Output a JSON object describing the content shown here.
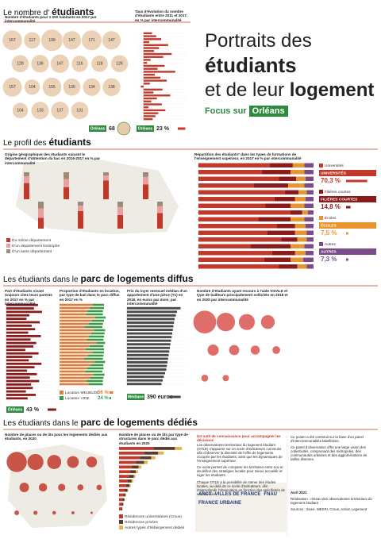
{
  "header": {
    "line1": "Portraits des",
    "line2": "étudiants",
    "line3a": "et de leur",
    "line3b": "logement",
    "focus": "Focus sur",
    "city": "Orléans"
  },
  "sections": [
    {
      "a": "Le nombre d'",
      "b": "étudiants"
    },
    {
      "a": "Le profil des",
      "b": "étudiants"
    },
    {
      "a": "Les étudiants dans le",
      "b": "parc de logements diffus"
    },
    {
      "a": "Les étudiants dans le",
      "b": "parc de logements dédiés"
    }
  ],
  "chart_data": [
    {
      "type": "bubble",
      "title": "Nombre d'étudiants pour 1 000 habitants en 2017 par intercommunalité",
      "color": "#e8c9a8",
      "show_values": true,
      "values": [
        167,
        117,
        199,
        147,
        171,
        147,
        128,
        136,
        147,
        116,
        118,
        126,
        157,
        104,
        155,
        130,
        134,
        138,
        104,
        133,
        137,
        131
      ],
      "summary": {
        "label": "Orléans",
        "value": 68
      }
    },
    {
      "type": "bar",
      "title": "Taux d'évolution du nombre d'étudiants entre 2011 et 2017, en % par intercommunalité",
      "color": "#c0392b",
      "values": [
        12,
        18,
        25,
        8,
        35,
        22,
        15,
        40,
        28,
        10,
        5,
        30,
        20,
        45,
        16,
        24,
        33,
        9,
        -4,
        27,
        14,
        38,
        19,
        11,
        26,
        7,
        31,
        21,
        17,
        13
      ],
      "xlim": [
        -10,
        60
      ],
      "summary": {
        "label": "Orléans",
        "value": 23,
        "value_label": "23 %"
      }
    },
    {
      "type": "column",
      "title": "Origine géographique des étudiants suivant le département d'obtention du bac en 2016-2017 en % par intercommunalité",
      "ylim": [
        0,
        100
      ],
      "series": [
        {
          "name": "Du même département",
          "color": "#c0392b",
          "values": [
            60,
            45,
            70,
            55,
            40,
            65,
            50,
            58
          ]
        },
        {
          "name": "D'un département limitrophe",
          "color": "#e8a0a0",
          "values": [
            25,
            30,
            18,
            28,
            35,
            20,
            30,
            25
          ]
        },
        {
          "name": "D'un autre département",
          "color": "#9a8b7a",
          "values": [
            15,
            25,
            12,
            17,
            25,
            15,
            20,
            17
          ]
        }
      ]
    },
    {
      "type": "bar",
      "stacked": true,
      "title": "Répartition des étudiants* dans les types de formations de l'enseignement supérieur, en 2017 en % par intercommunalité",
      "xlim": [
        0,
        100
      ],
      "series": [
        {
          "name": "Universités",
          "color": "#c0392b",
          "total": 70.3,
          "total_label": "70,3 %",
          "values": [
            62,
            55,
            70,
            48,
            75,
            66,
            58,
            80,
            52,
            68,
            60,
            72,
            45,
            64,
            57,
            70
          ]
        },
        {
          "name": "Filières courtes",
          "color": "#8b1a1a",
          "total": 14.8,
          "total_label": "14,8 %",
          "values": [
            20,
            25,
            15,
            30,
            12,
            18,
            22,
            10,
            28,
            16,
            24,
            14,
            35,
            20,
            23,
            16
          ]
        },
        {
          "name": "Écoles",
          "color": "#e8952f",
          "total": 7.5,
          "total_label": "7,5 %",
          "values": [
            10,
            12,
            8,
            14,
            7,
            9,
            12,
            5,
            12,
            9,
            10,
            8,
            12,
            9,
            11,
            8
          ]
        },
        {
          "name": "Autres",
          "color": "#7a4a8a",
          "total": 7.3,
          "total_label": "7,3 %",
          "values": [
            8,
            8,
            7,
            8,
            6,
            7,
            8,
            5,
            8,
            7,
            6,
            6,
            8,
            7,
            9,
            6
          ]
        }
      ]
    },
    {
      "type": "bar",
      "title": "Part d'étudiants vivant toujours chez leurs parents en 2017 en % par intercommunalité",
      "color": "#8b1a1a",
      "values": [
        55,
        48,
        62,
        40,
        35,
        58,
        44,
        50,
        38,
        60,
        42,
        52,
        47,
        33,
        56,
        45,
        39,
        61,
        49,
        36,
        53,
        41,
        57,
        43,
        46,
        34,
        51,
        37
      ],
      "xlim": [
        0,
        80
      ],
      "summary": {
        "label": "Orléans",
        "value": 43,
        "value_label": "43 %"
      }
    },
    {
      "type": "bar",
      "stacked": true,
      "title": "Proportion d'étudiants en location, par type de bail dans le parc diffus en 2017 en %",
      "xlim": [
        0,
        100
      ],
      "series": [
        {
          "name": "Location MEUBLÉE",
          "color": "#e07b39",
          "total": 56,
          "total_label": "56 %",
          "values": [
            60,
            55,
            50,
            48,
            65,
            58,
            52,
            45,
            62,
            57,
            53,
            49,
            66,
            54,
            47,
            59,
            51,
            44,
            63,
            56,
            50,
            46,
            61,
            55,
            48,
            52
          ]
        },
        {
          "name": "Location VIDE",
          "color": "#3a9a4a",
          "total": 24,
          "total_label": "24 %",
          "values": [
            20,
            25,
            28,
            30,
            18,
            22,
            26,
            32,
            20,
            24,
            27,
            30,
            16,
            25,
            33,
            21,
            28,
            34,
            19,
            23,
            29,
            31,
            20,
            24,
            30,
            26
          ]
        }
      ]
    },
    {
      "type": "bar",
      "title": "Prix du loyer mensuel médian d'un appartement d'une pièce (T1) en 2018, en euros par mois, par intercommunalité",
      "color": "#4a4a4a",
      "values": [
        450,
        420,
        410,
        400,
        395,
        390,
        385,
        380,
        375,
        370,
        365,
        360,
        355,
        350,
        345,
        340,
        335,
        330,
        320,
        310,
        300,
        290
      ],
      "xlim": [
        0,
        500
      ],
      "summary": {
        "label": "Médiane",
        "value": 390,
        "value_label": "390 euros"
      }
    },
    {
      "type": "bubble",
      "title": "Nombre d'étudiants ayant recours à l'aide VISALE et type de bailleurs principalement sollicités en 2018 et en 2020 par intercommunalité",
      "color": "#d9534f",
      "values": [
        120,
        80,
        60,
        45,
        30,
        25,
        20,
        15,
        12,
        10
      ]
    },
    {
      "type": "bubble",
      "title": "Nombre de places ou de lits pour les logements dédiés aux étudiants, en 2020",
      "color": "#c0392b",
      "values": [
        5000,
        3200,
        2500,
        1800,
        1500,
        1200,
        900,
        700,
        500,
        400,
        300,
        250,
        200,
        150,
        100
      ]
    },
    {
      "type": "bar",
      "stacked": true,
      "title": "Nombre de places ou de lits par type de structures dans le parc dédié aux étudiants en 2020",
      "xlim": [
        0,
        5000
      ],
      "series": [
        {
          "name": "Résidences universitaires (Crous)",
          "color": "#c0392b",
          "values": [
            2500,
            1800,
            1500,
            1200,
            900,
            800,
            700,
            600,
            500,
            400,
            300,
            250,
            200,
            150
          ]
        },
        {
          "name": "Résidences privées",
          "color": "#5a3a2a",
          "values": [
            1500,
            1000,
            800,
            600,
            500,
            400,
            350,
            300,
            250,
            200,
            150,
            120,
            100,
            80
          ]
        },
        {
          "name": "Autres types d'hébergement dédiés",
          "color": "#e8b04a",
          "values": [
            500,
            400,
            300,
            250,
            200,
            150,
            120,
            100,
            80,
            60,
            50,
            40,
            30,
            20
          ]
        }
      ]
    }
  ],
  "info": {
    "heading": "Un outil de connaissance pour accompagner les décisions",
    "left": [
      "Les observatoires territoriaux du logement étudiant (OTLE) s'appuient sur un socle d'indicateurs communs afin d'observer la diversité de l'offre de logements occupés par les étudiants, ainsi que les dynamiques de l'enseignement supérieur.",
      "Ce socle permet de comparer les territoires entre eux et de définir des stratégies locales pour mieux accueillir et loger les étudiants.",
      "Chaque OTLE a la possibilité de mener des études locales, au-delà de ce socle d'indicateurs, afin d'approfondir l'observation en fonction des spécificités de son territoire."
    ],
    "right": [
      "Ce poster a été construit sur la base d'un panel d'intercommunalités labellisées.",
      "Ce panel d'observation offre une large vision des collectivités, comprenant des métropoles, des communautés urbaines et des agglomérations de tailles diverses."
    ],
    "credits": [
      "Avril 2021",
      "Réalisation : réseau des observatoires territoriaux du logement étudiant",
      "Sources : Insee, MESRI, Crous, Action Logement"
    ],
    "logos": [
      "ANCT",
      "VILLES DE FRANCE",
      "FNAU",
      "FRANCE URBAINE"
    ]
  }
}
